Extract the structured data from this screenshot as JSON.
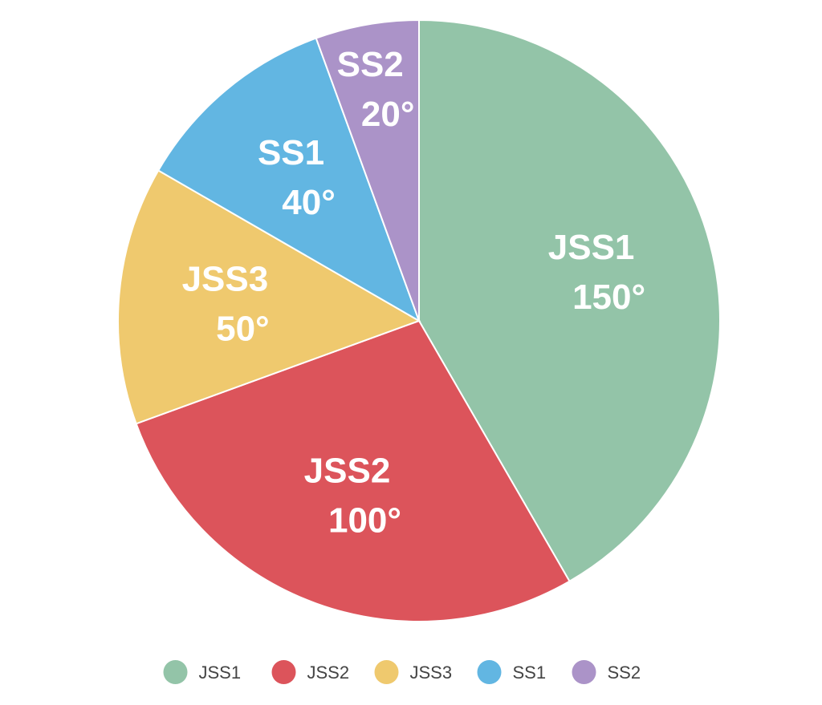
{
  "chart_data": {
    "type": "pie",
    "title": "",
    "unit": "°",
    "start_angle_deg": 0,
    "direction": "clockwise",
    "legend_position": "bottom",
    "slices": [
      {
        "label": "JSS1",
        "value": 150,
        "value_text": "150°",
        "color": "#93c4a8"
      },
      {
        "label": "JSS2",
        "value": 100,
        "value_text": "100°",
        "color": "#dc545b"
      },
      {
        "label": "JSS3",
        "value": 50,
        "value_text": "50°",
        "color": "#efc96e"
      },
      {
        "label": "SS1",
        "value": 40,
        "value_text": "40°",
        "color": "#62b6e2"
      },
      {
        "label": "SS2",
        "value": 20,
        "value_text": "20°",
        "color": "#ab93c8"
      }
    ]
  }
}
